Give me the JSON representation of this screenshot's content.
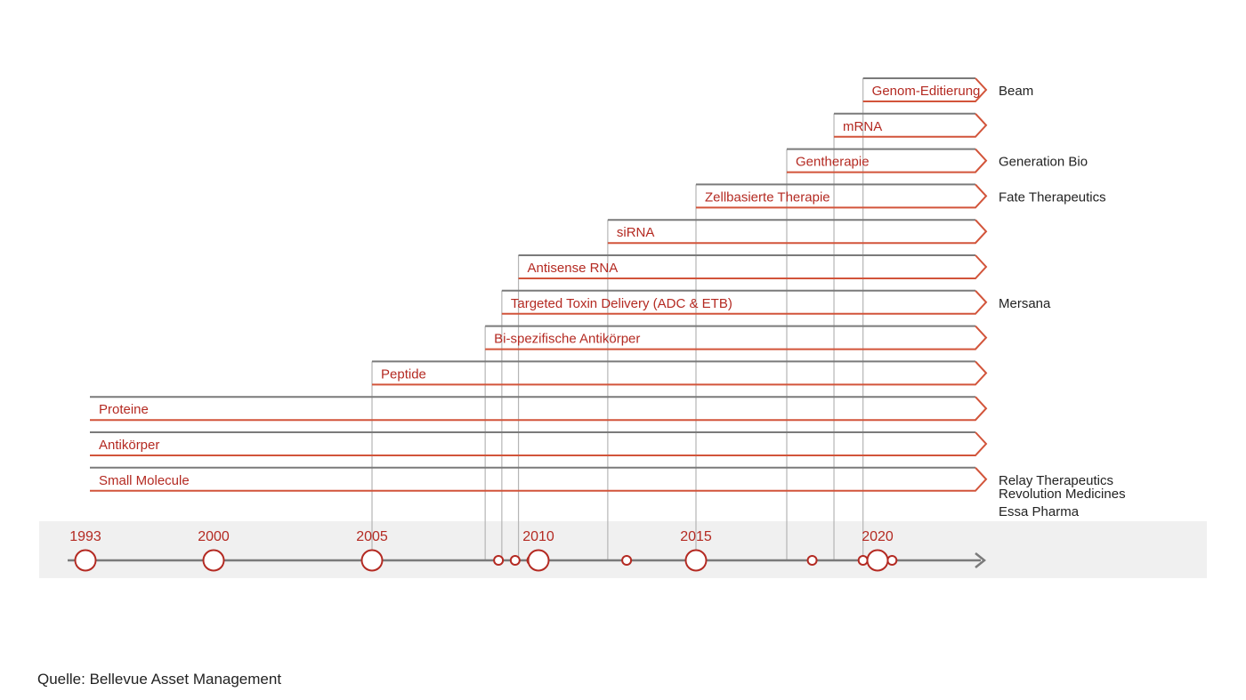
{
  "colors": {
    "accent": "#b42a22",
    "bar_outline": "#d2543a",
    "grey_line": "#7a7a7a",
    "thin_line": "#b5b5b5",
    "company_text": "#222222",
    "band": "#f0f0f0"
  },
  "timeline": {
    "years": [
      "1993",
      "2000",
      "2005",
      "2010",
      "2015",
      "2020"
    ],
    "events": [
      2008.8,
      2009.3,
      2009.8,
      2012.8,
      2015.0,
      2018.2,
      2019.6,
      2020.4
    ]
  },
  "technologies": [
    {
      "label": "Genom-Editierung",
      "start": 2019.6,
      "company": "Beam"
    },
    {
      "label": "mRNA",
      "start": 2018.8,
      "company": ""
    },
    {
      "label": "Gentherapie",
      "start": 2017.5,
      "company": "Generation Bio"
    },
    {
      "label": "Zellbasierte Therapie",
      "start": 2015.0,
      "company": "Fate Therapeutics"
    },
    {
      "label": "siRNA",
      "start": 2012.2,
      "company": ""
    },
    {
      "label": "Antisense RNA",
      "start": 2009.4,
      "company": ""
    },
    {
      "label": "Targeted Toxin Delivery (ADC & ETB)",
      "start": 2008.9,
      "company": "Mersana"
    },
    {
      "label": "Bi-spezifische Antikörper",
      "start": 2008.4,
      "company": ""
    },
    {
      "label": "Peptide",
      "start": 2005.0,
      "company": ""
    },
    {
      "label": "Proteine",
      "start": 1993.0,
      "company": ""
    },
    {
      "label": "Antikörper",
      "start": 1993.0,
      "company": ""
    },
    {
      "label": "Small Molecule",
      "start": 1993.0,
      "company": "Relay Therapeutics"
    }
  ],
  "extra_companies": [
    "Revolution Medicines",
    "Essa Pharma"
  ],
  "source": "Quelle: Bellevue Asset Management"
}
